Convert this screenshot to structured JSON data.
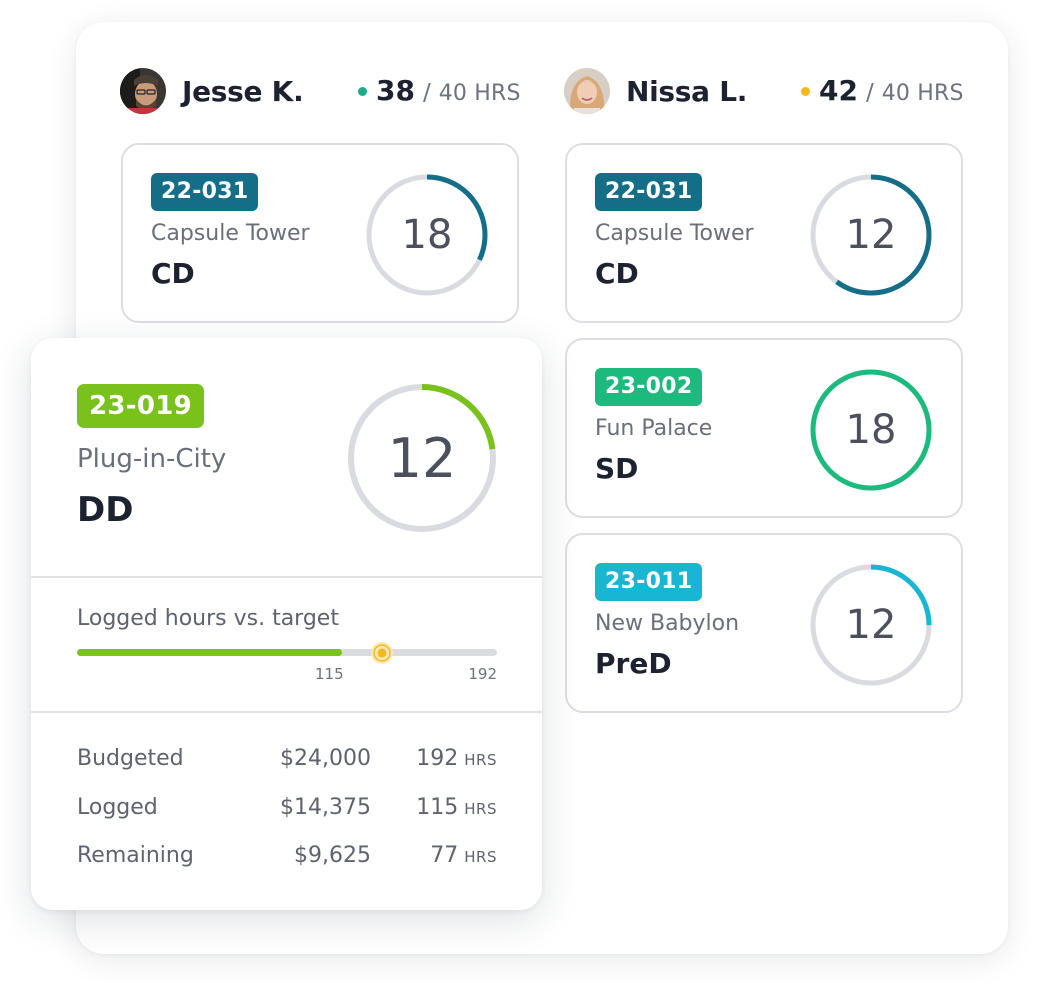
{
  "colors": {
    "teal_badge": "#146e87",
    "green_badge": "#79c11b",
    "emerald_badge": "#1dba7e",
    "cyan_badge": "#19b6d4",
    "ring_track": "#d9dbe0",
    "dot_teal": "#1aaa8c",
    "dot_amber": "#f5b91f"
  },
  "people": [
    {
      "name": "Jesse K.",
      "logged": "38",
      "separator": "/",
      "target": "40 HRS",
      "status_color": "#1aaa8c",
      "cards": [
        {
          "code": "22-031",
          "project": "Capsule Tower",
          "phase": "CD",
          "value": "18",
          "progress": 0.32,
          "color": "#146e87",
          "badge_color": "#146e87"
        }
      ]
    },
    {
      "name": "Nissa L.",
      "logged": "42",
      "separator": "/",
      "target": "40 HRS",
      "status_color": "#f5b91f",
      "cards": [
        {
          "code": "22-031",
          "project": "Capsule Tower",
          "phase": "CD",
          "value": "12",
          "progress": 0.6,
          "color": "#146e87",
          "badge_color": "#146e87"
        },
        {
          "code": "23-002",
          "project": "Fun Palace",
          "phase": "SD",
          "value": "18",
          "progress": 1.0,
          "color": "#1dba7e",
          "badge_color": "#1dba7e"
        },
        {
          "code": "23-011",
          "project": "New Babylon",
          "phase": "PreD",
          "value": "12",
          "progress": 0.25,
          "color": "#19b6d4",
          "badge_color": "#19b6d4"
        }
      ]
    }
  ],
  "feature": {
    "code": "23-019",
    "project": "Plug-in-City",
    "phase": "DD",
    "value": "12",
    "progress": 0.23,
    "color": "#79c11b",
    "badge_color": "#79c11b",
    "bar": {
      "label": "Logged hours vs. target",
      "logged_fraction": 0.63,
      "marker_fraction": 0.727,
      "logged_tick": "115",
      "target_tick": "192",
      "fill_color": "#79c11b",
      "marker_color": "#f5b91f"
    },
    "rows": [
      {
        "label": "Budgeted",
        "cost": "$24,000",
        "hours": "192",
        "unit": "HRS"
      },
      {
        "label": "Logged",
        "cost": "$14,375",
        "hours": "115",
        "unit": "HRS"
      },
      {
        "label": "Remaining",
        "cost": "$9,625",
        "hours": "77",
        "unit": "HRS"
      }
    ]
  }
}
